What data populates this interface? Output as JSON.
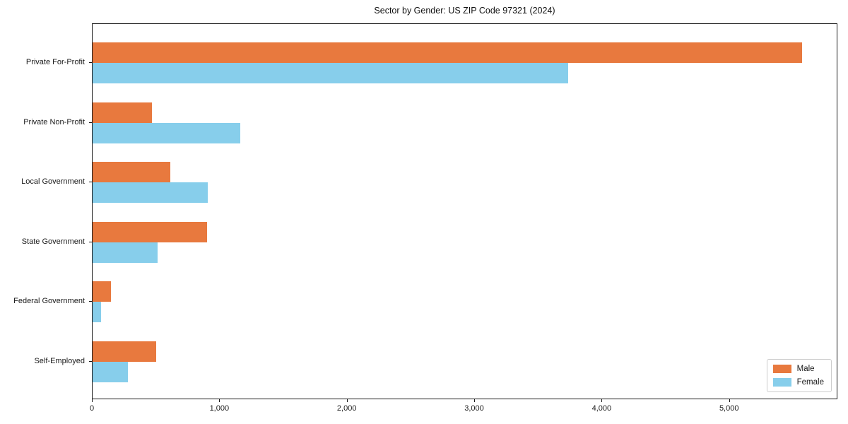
{
  "chart_data": {
    "type": "bar",
    "orientation": "horizontal",
    "title": "Sector by Gender: US ZIP Code 97321 (2024)",
    "categories": [
      "Private For-Profit",
      "Private Non-Profit",
      "Local Government",
      "State Government",
      "Federal Government",
      "Self-Employed"
    ],
    "series": [
      {
        "name": "Male",
        "color": "#E8793E",
        "values": [
          5575,
          465,
          610,
          900,
          145,
          500
        ]
      },
      {
        "name": "Female",
        "color": "#87CEEB",
        "values": [
          3740,
          1160,
          905,
          510,
          65,
          277
        ]
      }
    ],
    "xlabel": "",
    "ylabel": "",
    "xlim": [
      0,
      5850
    ],
    "x_ticks": [
      0,
      1000,
      2000,
      3000,
      4000,
      5000
    ],
    "x_tick_labels": [
      "0",
      "1,000",
      "2,000",
      "3,000",
      "4,000",
      "5,000"
    ],
    "grid": false,
    "legend_position": "lower right",
    "frame": "full-box"
  }
}
